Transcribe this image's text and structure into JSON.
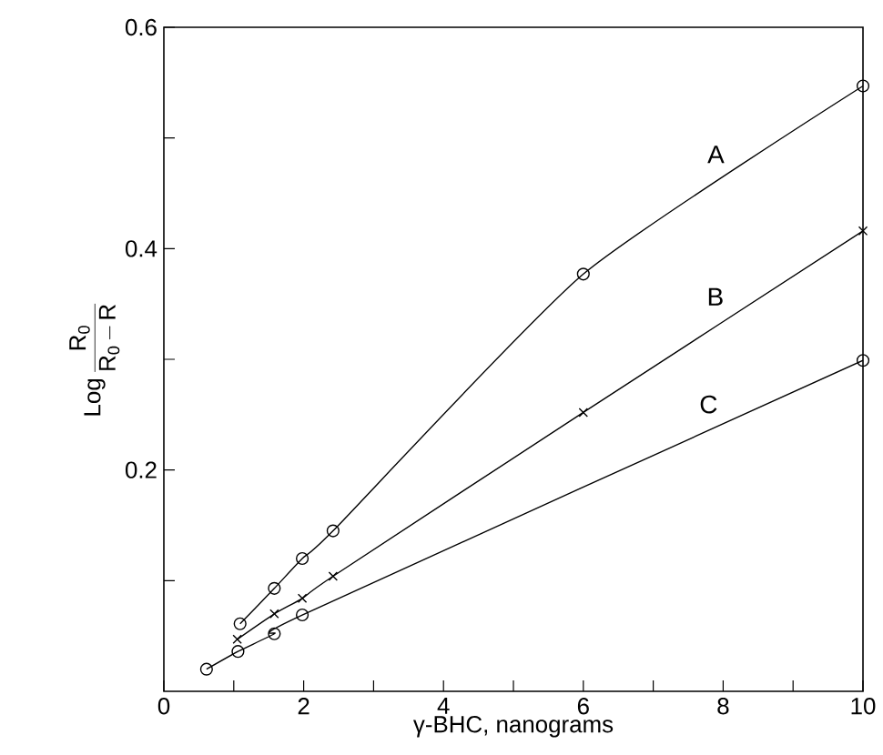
{
  "chart_data": {
    "type": "line",
    "xlabel": "γ-BHC, nanograms",
    "ylabel": "\\mathrm{Log}\\,\\frac{\\mathrm{R_0}}{\\mathrm{R_0\\,{-}\\,R}}",
    "xlim": [
      0,
      10
    ],
    "ylim": [
      0,
      0.6
    ],
    "xticks": [
      0,
      {
        "value": 1,
        "label": null
      },
      2,
      {
        "value": 3,
        "label": null
      },
      4,
      {
        "value": 5,
        "label": null
      },
      6,
      {
        "value": 7,
        "label": null
      },
      8,
      {
        "value": 9,
        "label": null
      },
      10
    ],
    "yticks": [
      {
        "value": 0.1,
        "label": null
      },
      0.2,
      {
        "value": 0.3,
        "label": null
      },
      0.4,
      {
        "value": 0.5,
        "label": null
      },
      0.6
    ],
    "grid": false,
    "legend": false,
    "line_style": "solid",
    "series": [
      {
        "name": "A",
        "color": "#000000",
        "marker": "circle",
        "x": [
          1.09,
          1.58,
          1.98,
          2.42,
          6,
          10
        ],
        "values": [
          0.061,
          0.093,
          0.12,
          0.145,
          0.377,
          0.547
        ]
      },
      {
        "name": "B",
        "color": "#000000",
        "marker": "cross",
        "x": [
          1.05,
          1.58,
          1.98,
          2.42,
          6,
          10
        ],
        "values": [
          0.047,
          0.07,
          0.084,
          0.104,
          0.252,
          0.416
        ]
      },
      {
        "name": "C",
        "color": "#000000",
        "marker": "circle",
        "x": [
          0.61,
          1.06,
          1.58,
          1.98,
          10
        ],
        "values": [
          0.02,
          0.036,
          0.052,
          0.069,
          0.299
        ]
      }
    ]
  }
}
